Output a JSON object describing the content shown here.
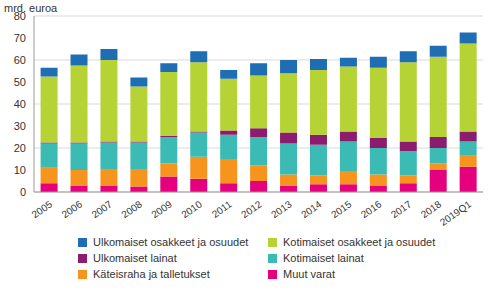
{
  "chart_data": {
    "type": "bar",
    "stacked": true,
    "grid": true,
    "legend": "bottom",
    "y_label": "mrd. euroa",
    "categories": [
      "2005",
      "2006",
      "2007",
      "2008",
      "2009",
      "2010",
      "2011",
      "2012",
      "2013",
      "2014",
      "2015",
      "2016",
      "2017",
      "2018",
      "2019Q1"
    ],
    "ylim": [
      0,
      80
    ],
    "yticks": [
      0,
      10,
      20,
      30,
      40,
      50,
      60,
      70,
      80
    ],
    "series": [
      {
        "name": "Muut varat",
        "color": "#e5007d",
        "values": [
          4,
          3,
          3,
          2.5,
          7,
          6,
          4,
          5,
          3,
          3.5,
          3.5,
          3,
          4,
          10,
          11.5
        ]
      },
      {
        "name": "Käteisraha ja talletukset",
        "color": "#f7941d",
        "values": [
          7,
          7,
          7.5,
          8,
          6,
          10,
          11,
          7,
          5,
          4,
          6,
          5,
          3.5,
          3,
          5
        ]
      },
      {
        "name": "Kotimaiset lainat",
        "color": "#3bbbb4",
        "values": [
          11,
          12,
          12,
          12,
          12,
          11,
          11,
          13,
          14,
          14,
          13.5,
          12,
          11,
          7,
          6.5
        ]
      },
      {
        "name": "Ulkomaiset lainat",
        "color": "#8c1d6e",
        "values": [
          0.5,
          0.5,
          0.5,
          0.5,
          0.5,
          0.5,
          2,
          4,
          5,
          4.5,
          4.5,
          4.5,
          4.5,
          5,
          4.5
        ]
      },
      {
        "name": "Kotimaiset osakkeet ja osuudet",
        "color": "#b5d334",
        "values": [
          30,
          35,
          37,
          25,
          29,
          31.5,
          23.5,
          24,
          27,
          29.5,
          29.5,
          32,
          36,
          36.5,
          40
        ]
      },
      {
        "name": "Ulkomaiset osakkeet ja osuudet",
        "color": "#1f6eb4",
        "values": [
          4,
          5,
          5,
          4,
          4,
          5,
          4,
          5.5,
          6,
          5,
          4,
          5,
          5,
          5,
          5
        ]
      }
    ]
  }
}
